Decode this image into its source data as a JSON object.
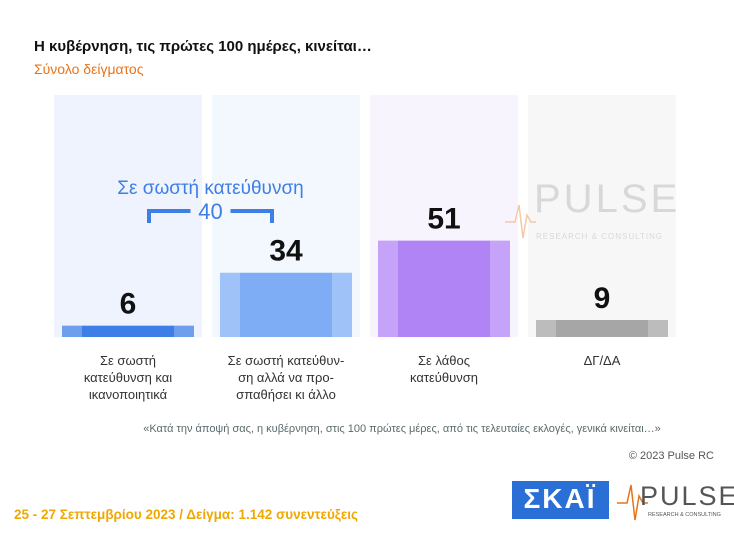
{
  "chart_data": {
    "type": "bar",
    "title": "Η κυβέρνηση, τις πρώτες 100 ημέρες, κινείται…",
    "subtitle": "Σύνολο δείγματος",
    "categories": [
      "Σε σωστή\nκατεύθυνση και\nικανοποιητικά",
      "Σε σωστή κατεύθυν-\nση αλλά να προ-\nσπαθήσει κι άλλο",
      "Σε λάθος\nκατεύθυνση",
      "ΔΓ/ΔΑ"
    ],
    "values": [
      6,
      34,
      51,
      9
    ],
    "colors": [
      "#3d7fe6",
      "#7fadf5",
      "#b184f5",
      "#a6a6a6"
    ],
    "annotation": {
      "label": "Σε σωστή κατεύθυνση",
      "value": 40
    },
    "question": "«Κατά την άποψή σας, η κυβέρνηση, στις 100 πρώτες μέρες, από τις τελευταίες εκλογές, γενικά κινείται…»",
    "copyright": "© 2023 Pulse RC",
    "footer": "25 - 27 Σεπτεμβρίου  2023  /  Δείγμα:  1.142 συνεντεύξεις",
    "watermark": {
      "name": "PULSE",
      "tagline": "RESEARCH & CONSULTING"
    },
    "logos": {
      "skai": "ΣΚΑΪ",
      "pulse": "PULSE",
      "pulse_tagline": "RESEARCH & CONSULTING"
    }
  }
}
